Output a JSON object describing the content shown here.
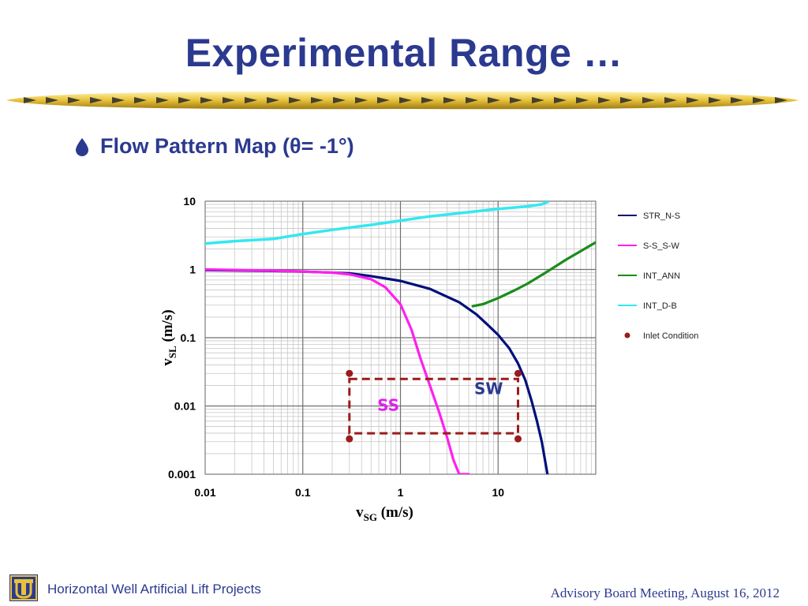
{
  "slide": {
    "title": "Experimental Range …",
    "bullet": "Flow Pattern Map (θ= -1°)",
    "footer_left": "Horizontal Well Artificial Lift Projects",
    "footer_right": "Advisory Board Meeting, August 16, 2012",
    "accent_color": "#2b3a8f",
    "gold_color": "#e8c23a"
  },
  "chart_data": {
    "type": "line",
    "xlabel_main": "v",
    "xlabel_sub": "SG",
    "xlabel_unit": " (m/s)",
    "ylabel_main": "v",
    "ylabel_sub": "SL",
    "ylabel_unit": " (m/s)",
    "xscale": "log",
    "yscale": "log",
    "xlim": [
      0.01,
      100
    ],
    "ylim": [
      0.001,
      10
    ],
    "x_ticks": [
      {
        "value": 0.01,
        "label": "0.01"
      },
      {
        "value": 0.1,
        "label": "0.1"
      },
      {
        "value": 1,
        "label": "1"
      },
      {
        "value": 10,
        "label": "10"
      }
    ],
    "y_ticks": [
      {
        "value": 0.001,
        "label": "0.001"
      },
      {
        "value": 0.01,
        "label": "0.01"
      },
      {
        "value": 0.1,
        "label": "0.1"
      },
      {
        "value": 1,
        "label": "1"
      },
      {
        "value": 10,
        "label": "10"
      }
    ],
    "grid": true,
    "legend_position": "right",
    "series": [
      {
        "name": "STR_N-S",
        "color": "#000f7a",
        "points": [
          [
            0.01,
            0.98
          ],
          [
            0.05,
            0.95
          ],
          [
            0.1,
            0.93
          ],
          [
            0.3,
            0.88
          ],
          [
            0.5,
            0.8
          ],
          [
            1,
            0.68
          ],
          [
            2,
            0.52
          ],
          [
            4,
            0.33
          ],
          [
            6,
            0.22
          ],
          [
            8,
            0.15
          ],
          [
            10,
            0.11
          ],
          [
            13,
            0.07
          ],
          [
            16,
            0.042
          ],
          [
            19,
            0.024
          ],
          [
            22,
            0.012
          ],
          [
            25,
            0.006
          ],
          [
            28,
            0.003
          ],
          [
            32,
            0.001
          ]
        ]
      },
      {
        "name": "S-S_S-W",
        "color": "#ff20ee",
        "points": [
          [
            0.01,
            1.0
          ],
          [
            0.05,
            0.96
          ],
          [
            0.1,
            0.93
          ],
          [
            0.2,
            0.9
          ],
          [
            0.3,
            0.85
          ],
          [
            0.5,
            0.72
          ],
          [
            0.7,
            0.55
          ],
          [
            1,
            0.31
          ],
          [
            1.3,
            0.13
          ],
          [
            1.6,
            0.05
          ],
          [
            2,
            0.02
          ],
          [
            2.5,
            0.008
          ],
          [
            3,
            0.0035
          ],
          [
            3.5,
            0.0016
          ],
          [
            4,
            0.001
          ],
          [
            5,
            0.001
          ]
        ]
      },
      {
        "name": "INT_ANN",
        "color": "#1a8c1a",
        "points": [
          [
            5.5,
            0.29
          ],
          [
            7,
            0.31
          ],
          [
            10,
            0.38
          ],
          [
            15,
            0.5
          ],
          [
            20,
            0.62
          ],
          [
            30,
            0.88
          ],
          [
            50,
            1.4
          ],
          [
            100,
            2.5
          ]
        ]
      },
      {
        "name": "INT_D-B",
        "color": "#33e8f0",
        "points": [
          [
            0.01,
            2.4
          ],
          [
            0.02,
            2.6
          ],
          [
            0.05,
            2.8
          ],
          [
            0.1,
            3.3
          ],
          [
            0.2,
            3.8
          ],
          [
            0.5,
            4.5
          ],
          [
            1,
            5.2
          ],
          [
            2,
            6.0
          ],
          [
            5,
            6.9
          ],
          [
            10,
            7.7
          ],
          [
            20,
            8.4
          ],
          [
            28,
            9.0
          ],
          [
            33,
            10
          ]
        ]
      }
    ],
    "inlet_condition": {
      "name": "Inlet Condition",
      "color": "#9b1b1b",
      "points": [
        [
          0.3,
          0.03
        ],
        [
          16,
          0.03
        ],
        [
          0.3,
          0.0033
        ],
        [
          16,
          0.0033
        ]
      ]
    },
    "annotations": [
      {
        "text": "SW",
        "x": 8,
        "y": 0.015,
        "color": "#2b3a8f"
      },
      {
        "text": "SS",
        "x": 0.75,
        "y": 0.0085,
        "color": "#e020ee"
      }
    ]
  }
}
